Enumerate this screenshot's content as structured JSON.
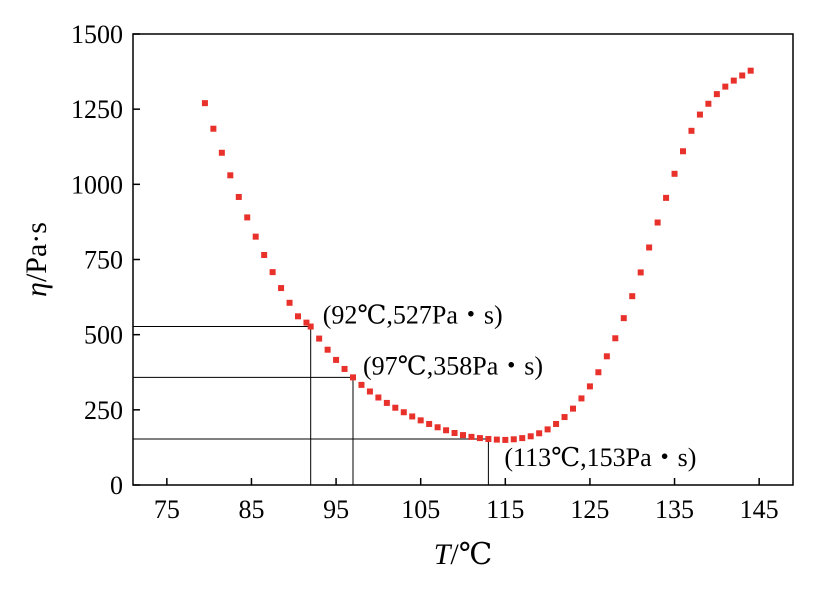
{
  "chart_data": {
    "type": "scatter",
    "xlabel_var": "T",
    "xlabel_unit": "/℃",
    "ylabel_var": "η",
    "ylabel_unit": "/Pa·s",
    "xlim": [
      71,
      149
    ],
    "ylim": [
      0,
      1500
    ],
    "xticks": [
      75,
      85,
      95,
      105,
      115,
      125,
      135,
      145
    ],
    "yticks": [
      0,
      250,
      500,
      750,
      1000,
      1250,
      1500
    ],
    "grid": false,
    "marker_color": "#e8312b",
    "series": [
      {
        "x": [
          79.5,
          80.5,
          81.5,
          82.5,
          83.5,
          84.5,
          85.5,
          86.5,
          87.5,
          88.5,
          89.5,
          90.5,
          91.5,
          92,
          93,
          94,
          95,
          96,
          97,
          98,
          99,
          100,
          101,
          102,
          103,
          104,
          105,
          106,
          107,
          108,
          109,
          110,
          111,
          112,
          113,
          114,
          115,
          116,
          117,
          118,
          119,
          120,
          121,
          122,
          123,
          124,
          125,
          126,
          127,
          128,
          129,
          130,
          131,
          132,
          133,
          134,
          135,
          136,
          137,
          138,
          139,
          140,
          141,
          142,
          143,
          144
        ],
        "y": [
          1270,
          1185,
          1105,
          1030,
          958,
          890,
          826,
          765,
          708,
          655,
          606,
          561,
          540,
          527,
          487,
          450,
          416,
          386,
          358,
          333,
          311,
          291,
          273,
          257,
          242,
          228,
          215,
          203,
          192,
          182,
          173,
          166,
          160,
          156,
          153,
          151,
          150,
          152,
          156,
          162,
          172,
          185,
          203,
          226,
          254,
          288,
          328,
          375,
          428,
          488,
          555,
          628,
          707,
          790,
          873,
          955,
          1035,
          1110,
          1178,
          1232,
          1268,
          1300,
          1325,
          1345,
          1362,
          1378
        ]
      }
    ],
    "annotations": [
      {
        "x": 92,
        "y": 527,
        "text": "(92℃,527Pa・s)"
      },
      {
        "x": 97,
        "y": 358,
        "text": "(97℃,358Pa・s)"
      },
      {
        "x": 113,
        "y": 153,
        "text": "(113℃,153Pa・s)"
      }
    ]
  }
}
